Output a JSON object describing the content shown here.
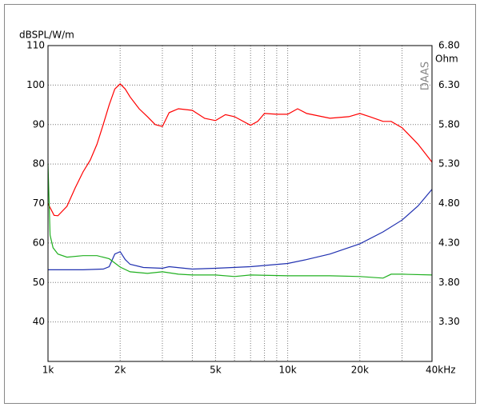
{
  "chart_data": {
    "type": "line",
    "y_label": "dBSPL/W/m",
    "y2_label": "Ohm",
    "watermark": "DAAS",
    "x_log": true,
    "grid": true,
    "xlim": [
      1000,
      40000
    ],
    "xticks": [
      {
        "value": 1000,
        "label": "1k"
      },
      {
        "value": 2000,
        "label": "2k"
      },
      {
        "value": 5000,
        "label": "5k"
      },
      {
        "value": 10000,
        "label": "10k"
      },
      {
        "value": 20000,
        "label": "20k"
      },
      {
        "value": 40000,
        "label": "40kHz"
      }
    ],
    "minor_xticks": [
      3000,
      4000,
      6000,
      7000,
      8000,
      9000,
      30000
    ],
    "ylim": [
      30,
      110
    ],
    "yticks": [
      40,
      50,
      60,
      70,
      80,
      90,
      100,
      110
    ],
    "y2lim": [
      2.8,
      6.8
    ],
    "y2ticks": [
      {
        "value": 3.3,
        "label": "3.30"
      },
      {
        "value": 3.8,
        "label": "3.80"
      },
      {
        "value": 4.3,
        "label": "4.30"
      },
      {
        "value": 4.8,
        "label": "4.80"
      },
      {
        "value": 5.3,
        "label": "5.30"
      },
      {
        "value": 5.8,
        "label": "5.80"
      },
      {
        "value": 6.3,
        "label": "6.30"
      },
      {
        "value": 6.8,
        "label": "6.80"
      }
    ],
    "series": [
      {
        "color": "#ff0000",
        "x": [
          1000,
          1060,
          1100,
          1200,
          1300,
          1400,
          1500,
          1600,
          1700,
          1800,
          1900,
          2000,
          2100,
          2200,
          2400,
          2600,
          2800,
          3000,
          3200,
          3500,
          4000,
          4500,
          5000,
          5500,
          6000,
          7000,
          7500,
          8000,
          9000,
          10000,
          11000,
          12000,
          15000,
          18000,
          20000,
          22000,
          25000,
          27000,
          30000,
          35000,
          40000
        ],
        "values": [
          70,
          67,
          66.9,
          69.3,
          74,
          78,
          81,
          85,
          90,
          95,
          99,
          100.3,
          99,
          97,
          94,
          92,
          90,
          89.5,
          93,
          94,
          93.6,
          91.6,
          91,
          92.5,
          92,
          89.8,
          90.8,
          92.8,
          92.6,
          92.6,
          94,
          92.8,
          91.6,
          92,
          92.8,
          92,
          90.8,
          90.8,
          89.2,
          85,
          80.5
        ]
      },
      {
        "color": "#2030b0",
        "axis": "y2",
        "x": [
          1000,
          1400,
          1700,
          1800,
          1900,
          2000,
          2100,
          2200,
          2500,
          3000,
          3200,
          4000,
          5000,
          7000,
          10000,
          12000,
          15000,
          20000,
          25000,
          30000,
          35000,
          40000
        ],
        "values": [
          3.96,
          3.96,
          3.97,
          4.0,
          4.16,
          4.19,
          4.09,
          4.03,
          3.99,
          3.98,
          4.0,
          3.97,
          3.98,
          4.0,
          4.04,
          4.09,
          4.16,
          4.29,
          4.44,
          4.59,
          4.77,
          4.98
        ]
      },
      {
        "color": "#20b020",
        "x": [
          1000,
          1020,
          1050,
          1100,
          1200,
          1400,
          1600,
          1800,
          2000,
          2200,
          2600,
          3000,
          3500,
          4000,
          5000,
          6000,
          7000,
          10000,
          15000,
          20000,
          25000,
          27000,
          30000,
          40000
        ],
        "values": [
          80,
          62,
          58.8,
          57.2,
          56.4,
          56.8,
          56.8,
          56,
          53.9,
          52.7,
          52.3,
          52.7,
          52.1,
          51.9,
          51.9,
          51.5,
          51.9,
          51.7,
          51.7,
          51.5,
          51.1,
          52.1,
          52.1,
          51.9
        ]
      }
    ]
  }
}
